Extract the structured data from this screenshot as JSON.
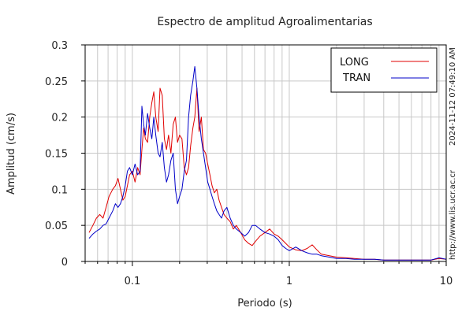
{
  "chart_data": {
    "type": "line",
    "title": "Espectro de amplitud Agroalimentarias",
    "xlabel": "Periodo (s)",
    "ylabel": "Amplitud (cm/s)",
    "xscale": "log",
    "xlim": [
      0.05,
      10
    ],
    "ylim": [
      0,
      0.3
    ],
    "yticks": [
      0,
      0.05,
      0.1,
      0.15,
      0.2,
      0.25,
      0.3
    ],
    "ytick_labels": [
      "0",
      "0.05",
      "0.1",
      "0.15",
      "0.2",
      "0.25",
      "0.3"
    ],
    "xticks": [
      0.1,
      1,
      10
    ],
    "xtick_labels": [
      "0.1",
      "1",
      "10"
    ],
    "grid": true,
    "legend_position": "top-right",
    "series": [
      {
        "name": "LONG",
        "color": "#e00000",
        "x": [
          0.053,
          0.056,
          0.059,
          0.062,
          0.065,
          0.068,
          0.071,
          0.075,
          0.078,
          0.081,
          0.084,
          0.087,
          0.09,
          0.093,
          0.096,
          0.1,
          0.104,
          0.108,
          0.112,
          0.115,
          0.118,
          0.121,
          0.125,
          0.129,
          0.133,
          0.137,
          0.141,
          0.146,
          0.15,
          0.155,
          0.16,
          0.165,
          0.17,
          0.176,
          0.182,
          0.188,
          0.194,
          0.2,
          0.207,
          0.214,
          0.221,
          0.228,
          0.235,
          0.243,
          0.25,
          0.258,
          0.266,
          0.275,
          0.284,
          0.293,
          0.302,
          0.312,
          0.322,
          0.333,
          0.345,
          0.357,
          0.37,
          0.384,
          0.4,
          0.42,
          0.44,
          0.46,
          0.49,
          0.52,
          0.55,
          0.58,
          0.61,
          0.65,
          0.7,
          0.75,
          0.8,
          0.85,
          0.9,
          0.95,
          1.0,
          1.1,
          1.2,
          1.3,
          1.4,
          1.5,
          1.6,
          1.8,
          2.0,
          2.3,
          2.6,
          3.0,
          3.5,
          4.0,
          5.0,
          6.0,
          7.0,
          8.0,
          9.0,
          10.0
        ],
        "y": [
          0.04,
          0.05,
          0.06,
          0.065,
          0.06,
          0.075,
          0.09,
          0.1,
          0.105,
          0.115,
          0.1,
          0.085,
          0.09,
          0.105,
          0.12,
          0.125,
          0.11,
          0.13,
          0.12,
          0.155,
          0.185,
          0.17,
          0.165,
          0.2,
          0.22,
          0.235,
          0.2,
          0.18,
          0.24,
          0.23,
          0.17,
          0.155,
          0.175,
          0.15,
          0.19,
          0.2,
          0.165,
          0.175,
          0.17,
          0.13,
          0.12,
          0.13,
          0.16,
          0.185,
          0.2,
          0.24,
          0.18,
          0.2,
          0.155,
          0.15,
          0.135,
          0.12,
          0.105,
          0.095,
          0.1,
          0.085,
          0.075,
          0.065,
          0.06,
          0.055,
          0.045,
          0.05,
          0.04,
          0.03,
          0.025,
          0.022,
          0.028,
          0.035,
          0.04,
          0.045,
          0.038,
          0.035,
          0.03,
          0.025,
          0.02,
          0.016,
          0.015,
          0.018,
          0.023,
          0.016,
          0.01,
          0.008,
          0.006,
          0.005,
          0.004,
          0.003,
          0.003,
          0.002,
          0.002,
          0.002,
          0.002,
          0.002,
          0.004,
          0.003
        ]
      },
      {
        "name": "TRAN",
        "color": "#0000c8",
        "x": [
          0.053,
          0.056,
          0.059,
          0.062,
          0.065,
          0.068,
          0.071,
          0.075,
          0.078,
          0.081,
          0.084,
          0.087,
          0.09,
          0.093,
          0.096,
          0.1,
          0.104,
          0.108,
          0.112,
          0.115,
          0.118,
          0.121,
          0.125,
          0.129,
          0.133,
          0.137,
          0.141,
          0.146,
          0.15,
          0.155,
          0.16,
          0.165,
          0.17,
          0.176,
          0.182,
          0.188,
          0.194,
          0.2,
          0.207,
          0.214,
          0.221,
          0.228,
          0.235,
          0.243,
          0.25,
          0.258,
          0.266,
          0.275,
          0.284,
          0.293,
          0.302,
          0.312,
          0.322,
          0.333,
          0.345,
          0.357,
          0.37,
          0.384,
          0.4,
          0.42,
          0.44,
          0.46,
          0.49,
          0.52,
          0.55,
          0.58,
          0.61,
          0.65,
          0.7,
          0.75,
          0.8,
          0.85,
          0.9,
          0.95,
          1.0,
          1.1,
          1.2,
          1.3,
          1.4,
          1.5,
          1.6,
          1.8,
          2.0,
          2.3,
          2.6,
          3.0,
          3.5,
          4.0,
          5.0,
          6.0,
          7.0,
          8.0,
          9.0,
          10.0
        ],
        "y": [
          0.032,
          0.038,
          0.042,
          0.045,
          0.05,
          0.052,
          0.06,
          0.07,
          0.08,
          0.075,
          0.08,
          0.09,
          0.105,
          0.125,
          0.13,
          0.12,
          0.135,
          0.12,
          0.125,
          0.215,
          0.19,
          0.175,
          0.205,
          0.185,
          0.17,
          0.2,
          0.175,
          0.15,
          0.145,
          0.165,
          0.13,
          0.11,
          0.12,
          0.14,
          0.15,
          0.1,
          0.08,
          0.09,
          0.1,
          0.125,
          0.14,
          0.2,
          0.23,
          0.25,
          0.27,
          0.24,
          0.2,
          0.17,
          0.15,
          0.13,
          0.11,
          0.1,
          0.09,
          0.08,
          0.07,
          0.065,
          0.06,
          0.07,
          0.075,
          0.06,
          0.05,
          0.045,
          0.04,
          0.035,
          0.04,
          0.05,
          0.05,
          0.045,
          0.04,
          0.038,
          0.035,
          0.03,
          0.022,
          0.018,
          0.015,
          0.02,
          0.015,
          0.012,
          0.01,
          0.01,
          0.008,
          0.006,
          0.004,
          0.004,
          0.003,
          0.003,
          0.003,
          0.002,
          0.002,
          0.002,
          0.002,
          0.002,
          0.005,
          0.003
        ]
      }
    ]
  },
  "side": {
    "timestamp": "2024-11-12 07:49:10 AM",
    "url": "http://www.lis.ucr.ac.cr"
  }
}
